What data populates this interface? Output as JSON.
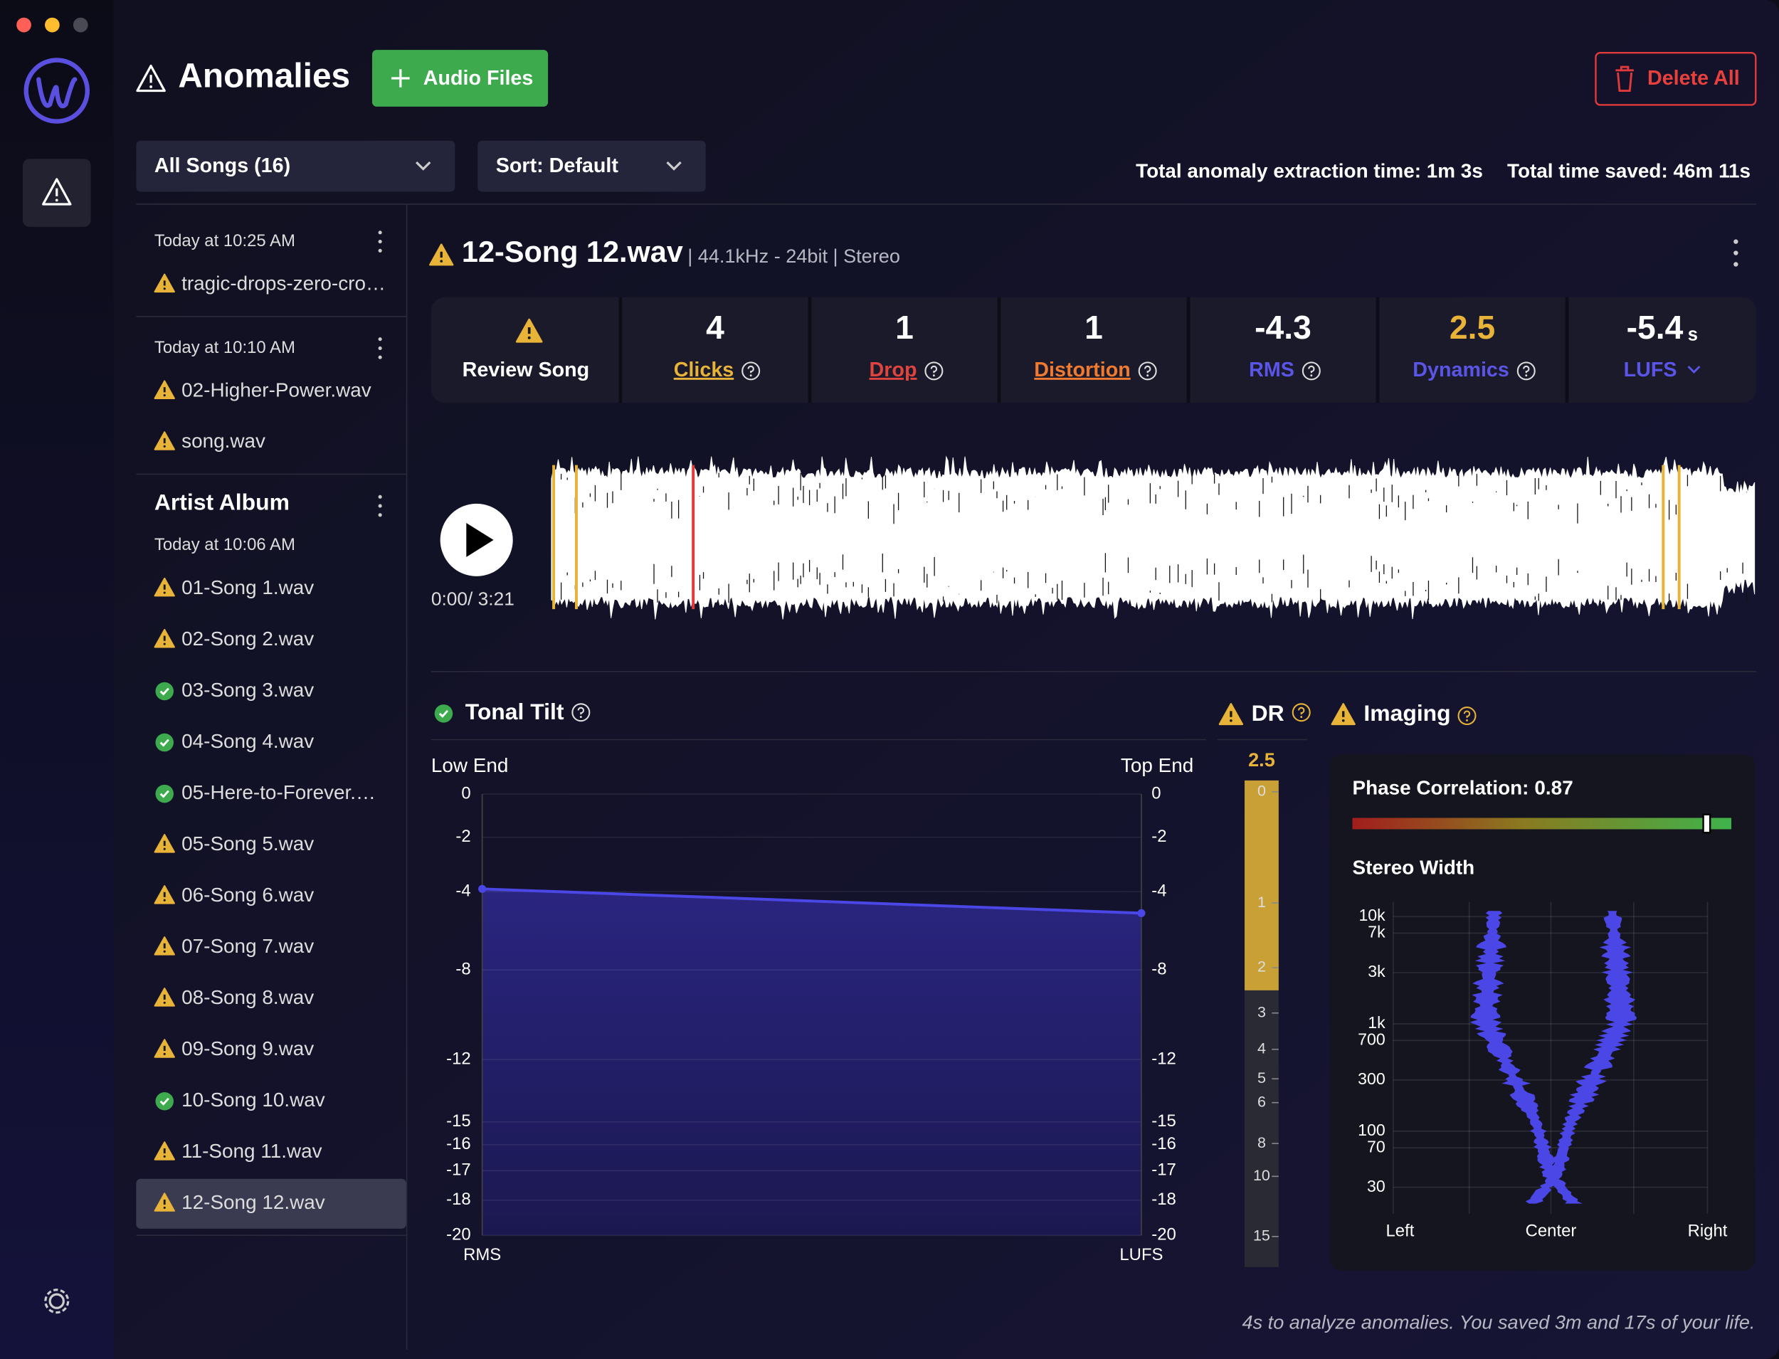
{
  "header": {
    "title": "Anomalies",
    "add_button": "Audio Files",
    "delete_button": "Delete All",
    "filter": "All Songs (16)",
    "sort": "Sort: Default",
    "extraction_time": "Total anomaly extraction time: 1m 3s",
    "time_saved": "Total time saved: 46m 11s"
  },
  "sidebar": {
    "groups": [
      {
        "date": "Today at 10:25 AM",
        "items": [
          {
            "name": "tragic-drops-zero-cro…",
            "status": "warning"
          }
        ]
      },
      {
        "date": "Today at 10:10 AM",
        "items": [
          {
            "name": "02-Higher-Power.wav",
            "status": "warning"
          },
          {
            "name": "song.wav",
            "status": "warning"
          }
        ]
      },
      {
        "title": "Artist Album",
        "date": "Today at 10:06 AM",
        "items": [
          {
            "name": "01-Song 1.wav",
            "status": "warning"
          },
          {
            "name": "02-Song 2.wav",
            "status": "warning"
          },
          {
            "name": "03-Song 3.wav",
            "status": "ok"
          },
          {
            "name": "04-Song 4.wav",
            "status": "ok"
          },
          {
            "name": "05-Here-to-Forever.…",
            "status": "ok"
          },
          {
            "name": "05-Song 5.wav",
            "status": "warning"
          },
          {
            "name": "06-Song 6.wav",
            "status": "warning"
          },
          {
            "name": "07-Song 7.wav",
            "status": "warning"
          },
          {
            "name": "08-Song 8.wav",
            "status": "warning"
          },
          {
            "name": "09-Song 9.wav",
            "status": "warning"
          },
          {
            "name": "10-Song 10.wav",
            "status": "ok"
          },
          {
            "name": "11-Song 11.wav",
            "status": "warning"
          },
          {
            "name": "12-Song 12.wav",
            "status": "warning",
            "selected": true
          }
        ]
      }
    ]
  },
  "song": {
    "title": "12-Song 12.wav",
    "details": "| 44.1kHz - 24bit | Stereo",
    "time": "0:00/ 3:21"
  },
  "stats": [
    {
      "label": "Review Song",
      "icon": "warning"
    },
    {
      "value": 4,
      "label": "Clicks",
      "color": "#e8b339",
      "underline": true,
      "help": true
    },
    {
      "value": 1,
      "label": "Drop",
      "color": "#e0443e",
      "underline": true,
      "help": true
    },
    {
      "value": 1,
      "label": "Distortion",
      "color": "#f07a30",
      "underline": true,
      "help": true
    },
    {
      "value": -4.3,
      "label": "RMS",
      "color": "#5a55e6",
      "help": true
    },
    {
      "value": 2.5,
      "label": "Dynamics",
      "color": "#5a55e6",
      "value_color": "#e8b339",
      "help": true
    },
    {
      "value": -5.4,
      "unit": "s",
      "label": "LUFS",
      "color": "#5a55e6",
      "dropdown": true
    }
  ],
  "chart_data": [
    {
      "type": "area",
      "title": "Tonal Tilt",
      "left_label": "Low End",
      "right_label": "Top End",
      "categories": [
        "RMS",
        "LUFS"
      ],
      "series": [
        {
          "color": "#4b46e6",
          "values": [
            -3.9,
            -5.1
          ]
        }
      ],
      "ylim": [
        0,
        -20
      ],
      "yticks": [
        0,
        -2,
        -4,
        -8,
        -12,
        -15,
        -16,
        -17,
        -18,
        -20
      ],
      "y2ticks": [
        0,
        -2,
        -4,
        -8,
        -12,
        -15,
        -16,
        -17,
        -18,
        -20
      ],
      "grid": true
    },
    {
      "type": "meter",
      "title": "DR",
      "value": 2.5,
      "color": "#c9a036",
      "ylim": [
        0,
        15
      ],
      "yticks": [
        0,
        1,
        2,
        3,
        4,
        5,
        6,
        8,
        10,
        15
      ]
    },
    {
      "type": "imaging",
      "title": "Imaging",
      "phase_correlation": {
        "label": "Phase Correlation:",
        "value": 0.87,
        "xlim": [
          -1,
          1
        ]
      },
      "stereo_width": {
        "title": "Stereo Width",
        "log": true,
        "ylim": [
          17,
          13700
        ],
        "yticks": [
          {
            "value": 10000,
            "label": "10k"
          },
          {
            "value": 7000,
            "label": "7k"
          },
          {
            "value": 3000,
            "label": "3k"
          },
          {
            "value": 1000,
            "label": "1k"
          },
          700,
          300,
          100,
          70,
          30
        ],
        "xticks": [
          "Left",
          "Center",
          "Right"
        ],
        "color": "#4b46e6",
        "grid": true
      }
    }
  ],
  "footer": "4s to analyze anomalies. You saved 3m and 17s of your life."
}
